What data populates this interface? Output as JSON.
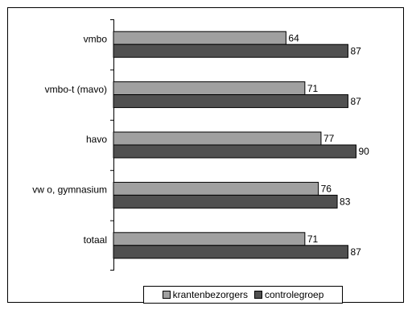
{
  "chart_data": {
    "type": "bar",
    "orientation": "horizontal",
    "categories": [
      "vmbo",
      "vmbo-t (mavo)",
      "havo",
      "vw o, gymnasium",
      "totaal"
    ],
    "series": [
      {
        "name": "krantenbezorgers",
        "values": [
          64,
          71,
          77,
          76,
          71
        ]
      },
      {
        "name": "controlegroep",
        "values": [
          87,
          87,
          90,
          83,
          87
        ]
      }
    ],
    "xlim": [
      0,
      100
    ],
    "legend_position": "bottom",
    "grid": false
  },
  "colors": {
    "krantenbezorgers": "#a0a0a0",
    "controlegroep": "#505050"
  }
}
